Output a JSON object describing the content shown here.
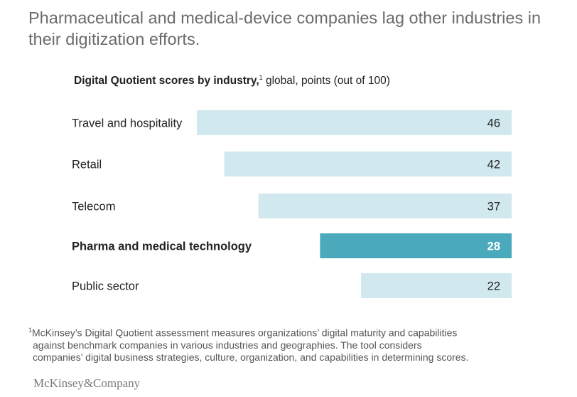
{
  "headline": "Pharmaceutical and medical-device companies lag other industries in their digitization efforts.",
  "subtitle": {
    "bold": "Digital Quotient scores by industry,",
    "footnote_mark": "1",
    "rest": " global, points (out of 100)"
  },
  "chart_data": {
    "type": "bar",
    "orientation": "horizontal",
    "title": "Digital Quotient scores by industry, global, points (out of 100)",
    "categories": [
      "Travel and hospitality",
      "Retail",
      "Telecom",
      "Pharma and medical technology",
      "Public sector"
    ],
    "values": [
      46,
      42,
      37,
      28,
      22
    ],
    "highlighted": [
      "Pharma and medical technology"
    ],
    "xlabel": "",
    "ylabel": "",
    "xlim": [
      0,
      100
    ],
    "grid": false,
    "colors": {
      "default": "#d0e8ee",
      "highlight": "#4aa9bb",
      "label_text": "#222222",
      "highlight_value_text": "#ffffff"
    }
  },
  "footnote": {
    "mark": "1",
    "lines": [
      "McKinsey’s Digital Quotient assessment measures organizations’ digital maturity and capabilities",
      "against benchmark companies in various industries and geographies. The tool considers",
      "companies’ digital business strategies, culture, organization, and capabilities in determining scores."
    ]
  },
  "logo": "McKinsey&Company"
}
